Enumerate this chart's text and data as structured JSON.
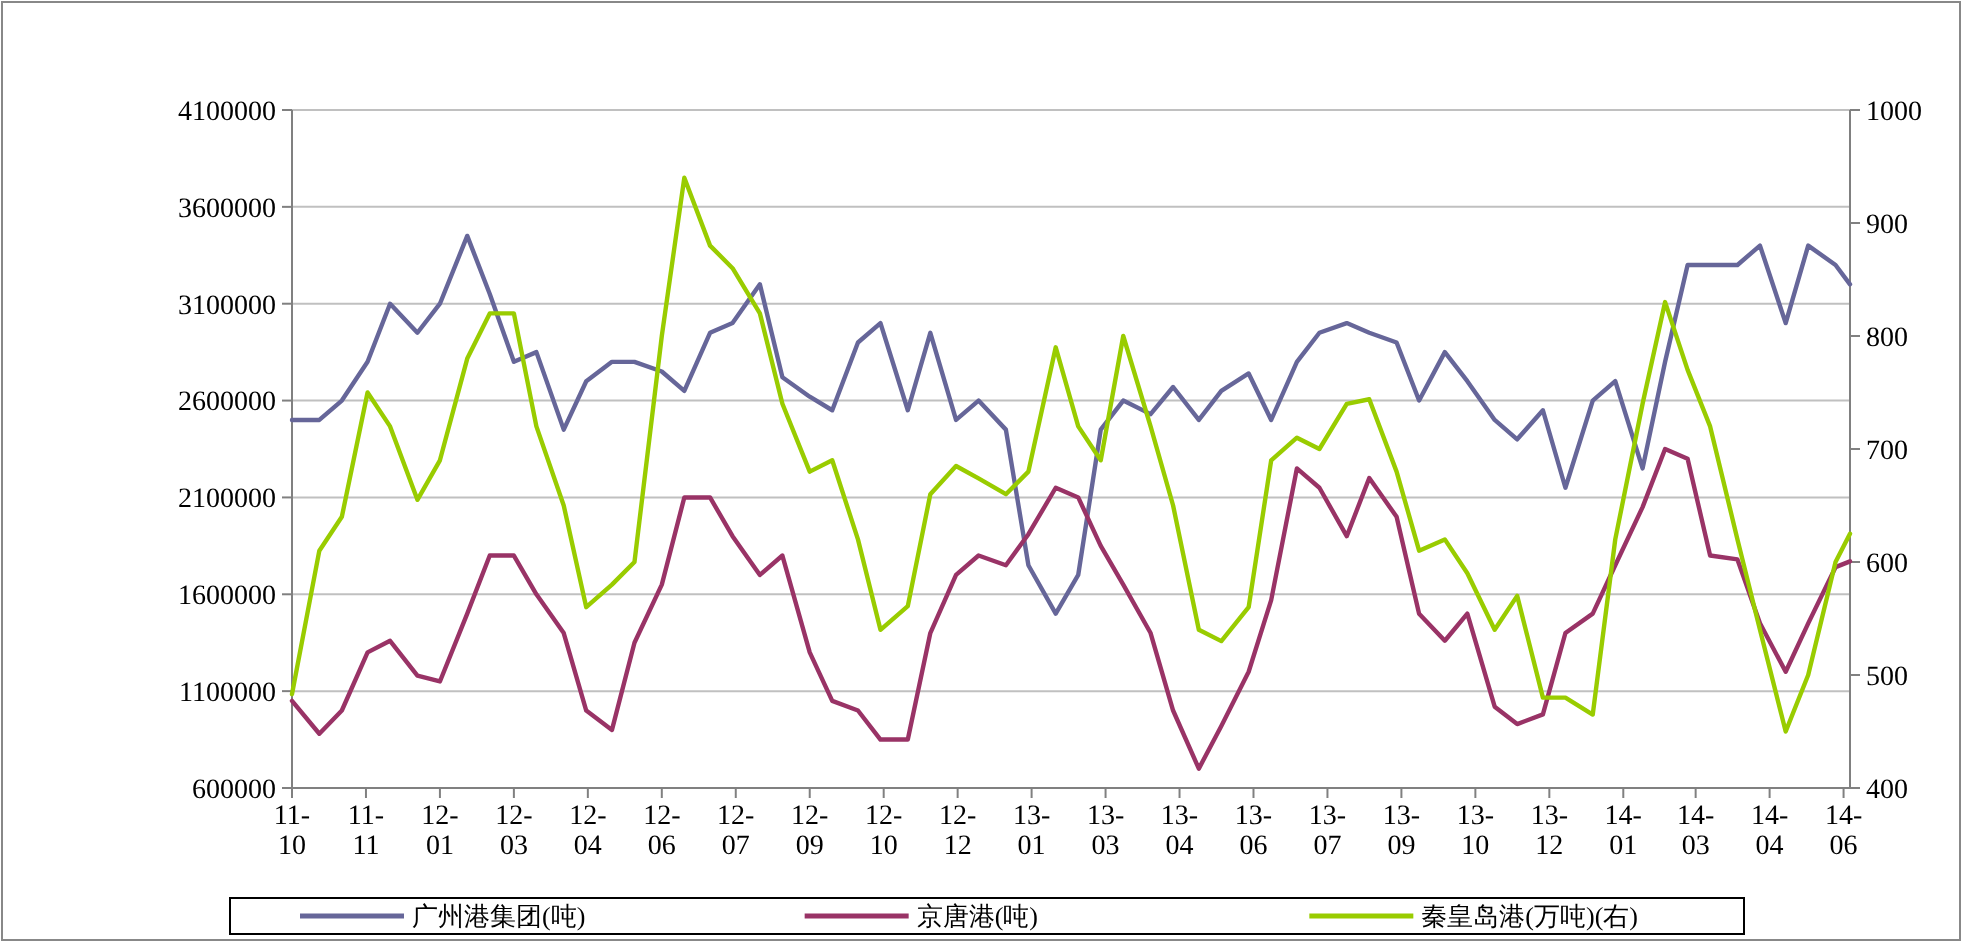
{
  "chart_data": {
    "type": "line",
    "x": [
      "2011-10-15",
      "2011-11-01",
      "2011-11-15",
      "2011-12-01",
      "2011-12-15",
      "2012-01-01",
      "2012-01-15",
      "2012-02-01",
      "2012-02-15",
      "2012-03-01",
      "2012-03-15",
      "2012-04-01",
      "2012-04-15",
      "2012-05-01",
      "2012-05-15",
      "2012-06-01",
      "2012-06-15",
      "2012-07-01",
      "2012-07-15",
      "2012-08-01",
      "2012-08-15",
      "2012-09-01",
      "2012-09-15",
      "2012-10-01",
      "2012-10-15",
      "2012-11-01",
      "2012-11-15",
      "2012-12-01",
      "2012-12-15",
      "2013-01-01",
      "2013-01-15",
      "2013-02-01",
      "2013-02-15",
      "2013-03-01",
      "2013-03-15",
      "2013-04-01",
      "2013-04-15",
      "2013-05-01",
      "2013-05-15",
      "2013-06-01",
      "2013-06-15",
      "2013-07-01",
      "2013-07-15",
      "2013-08-01",
      "2013-08-15",
      "2013-09-01",
      "2013-09-15",
      "2013-10-01",
      "2013-10-15",
      "2013-11-01",
      "2013-11-15",
      "2013-12-01",
      "2013-12-15",
      "2014-01-01",
      "2014-01-15",
      "2014-02-01",
      "2014-02-15",
      "2014-03-01",
      "2014-03-15",
      "2014-04-01",
      "2014-04-15",
      "2014-05-01",
      "2014-05-15",
      "2014-06-01",
      "2014-06-10"
    ],
    "series": [
      {
        "name": "广州港集团(吨)",
        "color": "#666699",
        "values": [
          2500000,
          2500000,
          2600000,
          2800000,
          3100000,
          2950000,
          3100000,
          3450000,
          3150000,
          2800000,
          2850000,
          2450000,
          2700000,
          2800000,
          2800000,
          2750000,
          2650000,
          2950000,
          3000000,
          3200000,
          2720000,
          2620000,
          2550000,
          2900000,
          3000000,
          2550000,
          2950000,
          2500000,
          2600000,
          2450000,
          1750000,
          1500000,
          1700000,
          2450000,
          2600000,
          2530000,
          2670000,
          2500000,
          2650000,
          2740000,
          2500000,
          2800000,
          2950000,
          3000000,
          2950000,
          2900000,
          2600000,
          2850000,
          2700000,
          2500000,
          2400000,
          2550000,
          2150000,
          2600000,
          2700000,
          2250000,
          2800000,
          3300000,
          3300000,
          3300000,
          3400000,
          3000000,
          3400000,
          3300000,
          3200000
        ]
      },
      {
        "name": "京唐港(吨)",
        "color": "#993366",
        "values": [
          1050000,
          880000,
          1000000,
          1300000,
          1360000,
          1180000,
          1150000,
          1500000,
          1800000,
          1800000,
          1600000,
          1400000,
          1000000,
          900000,
          1350000,
          1650000,
          2100000,
          2100000,
          1900000,
          1700000,
          1800000,
          1300000,
          1050000,
          1000000,
          850000,
          850000,
          1400000,
          1700000,
          1800000,
          1750000,
          1910000,
          2150000,
          2100000,
          1850000,
          1650000,
          1400000,
          1000000,
          700000,
          920000,
          1200000,
          1570000,
          2250000,
          2150000,
          1900000,
          2200000,
          2000000,
          1500000,
          1360000,
          1500000,
          1020000,
          930000,
          980000,
          1400000,
          1500000,
          1750000,
          2050000,
          2350000,
          2300000,
          1800000,
          1780000,
          1450000,
          1200000,
          1450000,
          1740000,
          1770000
        ]
      },
      {
        "name": "秦皇岛港(万吨)(右)",
        "color": "#99cc00",
        "axis": "y2",
        "values": [
          483,
          610,
          640,
          750,
          720,
          655,
          690,
          780,
          820,
          820,
          720,
          650,
          560,
          580,
          600,
          800,
          940,
          880,
          860,
          820,
          740,
          680,
          690,
          620,
          540,
          561,
          660,
          685,
          674,
          660,
          680,
          790,
          720,
          690,
          800,
          720,
          650,
          540,
          530,
          560,
          690,
          710,
          700,
          740,
          744,
          680,
          610,
          620,
          590,
          540,
          570,
          480,
          480,
          465,
          620,
          740,
          830,
          770,
          720,
          620,
          540,
          450,
          500,
          600,
          625
        ]
      }
    ],
    "xlim": [
      "2011-10-15",
      "2014-06-10"
    ],
    "xticks": [
      {
        "value": "2011-10-15",
        "label": "11-10"
      },
      {
        "value": "2011-11-30",
        "label": "11-11"
      },
      {
        "value": "2012-01-15",
        "label": "12-01"
      },
      {
        "value": "2012-03-01",
        "label": "12-03"
      },
      {
        "value": "2012-04-16",
        "label": "12-04"
      },
      {
        "value": "2012-06-01",
        "label": "12-06"
      },
      {
        "value": "2012-07-17",
        "label": "12-07"
      },
      {
        "value": "2012-09-01",
        "label": "12-09"
      },
      {
        "value": "2012-10-17",
        "label": "12-10"
      },
      {
        "value": "2012-12-02",
        "label": "12-12"
      },
      {
        "value": "2013-01-17",
        "label": "13-01"
      },
      {
        "value": "2013-03-04",
        "label": "13-03"
      },
      {
        "value": "2013-04-19",
        "label": "13-04"
      },
      {
        "value": "2013-06-04",
        "label": "13-06"
      },
      {
        "value": "2013-07-20",
        "label": "13-07"
      },
      {
        "value": "2013-09-04",
        "label": "13-09"
      },
      {
        "value": "2013-10-20",
        "label": "13-10"
      },
      {
        "value": "2013-12-05",
        "label": "13-12"
      },
      {
        "value": "2014-01-20",
        "label": "14-01"
      },
      {
        "value": "2014-03-06",
        "label": "14-03"
      },
      {
        "value": "2014-04-21",
        "label": "14-04"
      },
      {
        "value": "2014-06-06",
        "label": "14-06"
      }
    ],
    "ylim": [
      600000,
      4100000
    ],
    "yticks": [
      600000,
      1100000,
      1600000,
      2100000,
      2600000,
      3100000,
      3600000,
      4100000
    ],
    "y2lim": [
      400,
      1000
    ],
    "y2ticks": [
      400,
      500,
      600,
      700,
      800,
      900,
      1000
    ],
    "grid": "y",
    "legend": "bottom",
    "marker": "none",
    "line_style": "solid"
  }
}
